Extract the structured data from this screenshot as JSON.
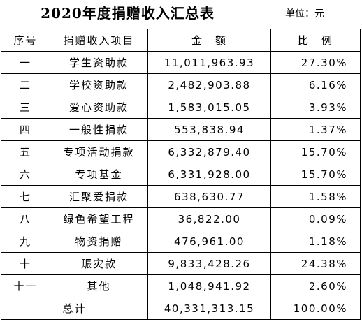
{
  "title": "2020年度捐赠收入汇总表",
  "unit": "单位：元",
  "headers": {
    "seq": "序号",
    "item": "捐赠收入项目",
    "amount": "金　额",
    "ratio": "比　例"
  },
  "rows": [
    {
      "seq": "一",
      "item": "学生资助款",
      "amount": "11,011,963.93",
      "ratio": "27.30%"
    },
    {
      "seq": "二",
      "item": "学校资助款",
      "amount": "2,482,903.88",
      "ratio": "6.16%"
    },
    {
      "seq": "三",
      "item": "爱心资助款",
      "amount": "1,583,015.05",
      "ratio": "3.93%"
    },
    {
      "seq": "四",
      "item": "一般性捐款",
      "amount": "553,838.94",
      "ratio": "1.37%"
    },
    {
      "seq": "五",
      "item": "专项活动捐款",
      "amount": "6,332,879.40",
      "ratio": "15.70%"
    },
    {
      "seq": "六",
      "item": "专项基金",
      "amount": "6,331,928.00",
      "ratio": "15.70%"
    },
    {
      "seq": "七",
      "item": "汇聚爱捐款",
      "amount": "638,630.77",
      "ratio": "1.58%"
    },
    {
      "seq": "八",
      "item": "绿色希望工程",
      "amount": "36,822.00",
      "ratio": "0.09%"
    },
    {
      "seq": "九",
      "item": "物资捐赠",
      "amount": "476,961.00",
      "ratio": "1.18%"
    },
    {
      "seq": "十",
      "item": "赈灾款",
      "amount": "9,833,428.26",
      "ratio": "24.38%"
    },
    {
      "seq": "十一",
      "item": "其他",
      "amount": "1,048,941.92",
      "ratio": "2.60%"
    }
  ],
  "total": {
    "label": "总计",
    "amount": "40,331,313.15",
    "ratio": "100.00%"
  }
}
